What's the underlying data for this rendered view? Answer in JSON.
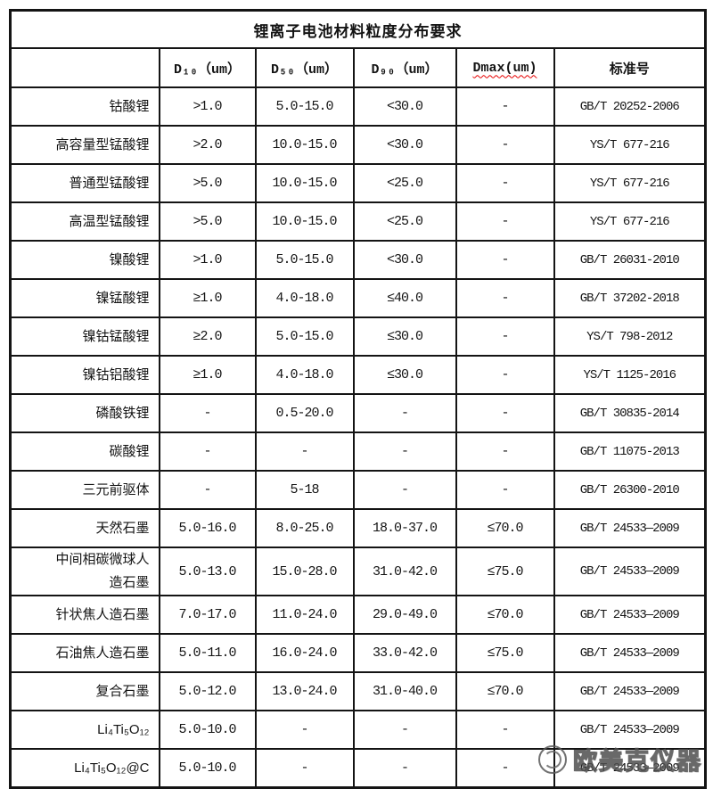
{
  "title": "锂离子电池材料粒度分布要求",
  "table": {
    "headers": [
      "",
      "D₁₀（um）",
      "D₅₀（um）",
      "D₉₀（um）",
      "Dmax(um)",
      "标准号"
    ],
    "rows": [
      {
        "material": "钴酸锂",
        "d10": ">1.0",
        "d50": "5.0-15.0",
        "d90": "<30.0",
        "dmax": "-",
        "standard": "GB/T 20252-2006"
      },
      {
        "material": "高容量型锰酸锂",
        "d10": ">2.0",
        "d50": "10.0-15.0",
        "d90": "<30.0",
        "dmax": "-",
        "standard": "YS/T 677-216"
      },
      {
        "material": "普通型锰酸锂",
        "d10": ">5.0",
        "d50": "10.0-15.0",
        "d90": "<25.0",
        "dmax": "-",
        "standard": "YS/T 677-216"
      },
      {
        "material": "高温型锰酸锂",
        "d10": ">5.0",
        "d50": "10.0-15.0",
        "d90": "<25.0",
        "dmax": "-",
        "standard": "YS/T 677-216"
      },
      {
        "material": "镍酸锂",
        "d10": ">1.0",
        "d50": "5.0-15.0",
        "d90": "<30.0",
        "dmax": "-",
        "standard": "GB/T 26031-2010"
      },
      {
        "material": "镍锰酸锂",
        "d10": "≥1.0",
        "d50": "4.0-18.0",
        "d90": "≤40.0",
        "dmax": "-",
        "standard": "GB/T 37202-2018"
      },
      {
        "material": "镍钴锰酸锂",
        "d10": "≥2.0",
        "d50": "5.0-15.0",
        "d90": "≤30.0",
        "dmax": "-",
        "standard": "YS/T 798-2012"
      },
      {
        "material": "镍钴铝酸锂",
        "d10": "≥1.0",
        "d50": "4.0-18.0",
        "d90": "≤30.0",
        "dmax": "-",
        "standard": "YS/T 1125-2016"
      },
      {
        "material": "磷酸铁锂",
        "d10": "-",
        "d50": "0.5-20.0",
        "d90": "-",
        "dmax": "-",
        "standard": "GB/T 30835-2014"
      },
      {
        "material": "碳酸锂",
        "d10": "-",
        "d50": "-",
        "d90": "-",
        "dmax": "-",
        "standard": "GB/T 11075-2013"
      },
      {
        "material": "三元前驱体",
        "d10": "-",
        "d50": "5-18",
        "d90": "-",
        "dmax": "-",
        "standard": "GB/T 26300-2010"
      },
      {
        "material": "天然石墨",
        "d10": "5.0-16.0",
        "d50": "8.0-25.0",
        "d90": "18.0-37.0",
        "dmax": "≤70.0",
        "standard": "GB/T 24533—2009"
      },
      {
        "material": "中间相碳微球人\n造石墨",
        "d10": "5.0-13.0",
        "d50": "15.0-28.0",
        "d90": "31.0-42.0",
        "dmax": "≤75.0",
        "standard": "GB/T 24533—2009"
      },
      {
        "material": "针状焦人造石墨",
        "d10": "7.0-17.0",
        "d50": "11.0-24.0",
        "d90": "29.0-49.0",
        "dmax": "≤70.0",
        "standard": "GB/T 24533—2009"
      },
      {
        "material": "石油焦人造石墨",
        "d10": "5.0-11.0",
        "d50": "16.0-24.0",
        "d90": "33.0-42.0",
        "dmax": "≤75.0",
        "standard": "GB/T 24533—2009"
      },
      {
        "material": "复合石墨",
        "d10": "5.0-12.0",
        "d50": "13.0-24.0",
        "d90": "31.0-40.0",
        "dmax": "≤70.0",
        "standard": "GB/T 24533—2009"
      },
      {
        "material": "Li₄Ti₅O₁₂",
        "d10": "5.0-10.0",
        "d50": "-",
        "d90": "-",
        "dmax": "-",
        "standard": "GB/T 24533—2009"
      },
      {
        "material": "Li₄Ti₅O₁₂@C",
        "d10": "5.0-10.0",
        "d50": "-",
        "d90": "-",
        "dmax": "-",
        "standard": "GB/T 24533—2009"
      }
    ]
  },
  "watermark": {
    "text": "欧美克仪器"
  },
  "colors": {
    "border": "#141414",
    "spellcheck_underline": "#e60000",
    "watermark": "#4f4f4f",
    "background": "#ffffff"
  }
}
